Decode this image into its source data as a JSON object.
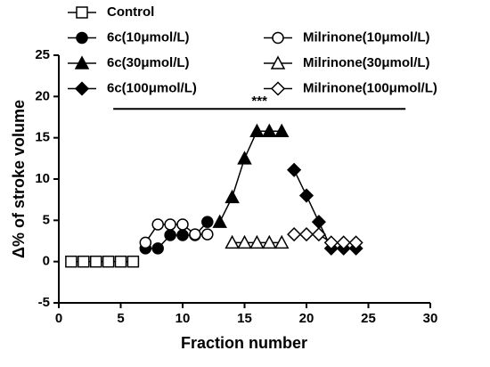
{
  "chart_data": {
    "type": "line",
    "xlabel": "Fraction number",
    "ylabel": "Δ% of stroke volume",
    "xlim": [
      0,
      30
    ],
    "xticks": [
      0,
      5,
      10,
      15,
      20,
      25,
      30
    ],
    "ylim": [
      -5,
      25
    ],
    "yticks": [
      -5,
      0,
      5,
      10,
      15,
      20,
      25
    ],
    "series": [
      {
        "name": "Control",
        "marker": "square",
        "filled": false,
        "x": [
          1,
          2,
          3,
          4,
          5,
          6
        ],
        "values": [
          0,
          0,
          0,
          0,
          0,
          0
        ]
      },
      {
        "name": "6c(10μmol/L)",
        "marker": "circle",
        "filled": true,
        "x": [
          7,
          8,
          9,
          10,
          11,
          12
        ],
        "values": [
          1.6,
          1.6,
          3.2,
          3.2,
          3.2,
          4.8
        ]
      },
      {
        "name": "6c(30μmol/L)",
        "marker": "triangle",
        "filled": true,
        "x": [
          13,
          14,
          15,
          16,
          17,
          18
        ],
        "values": [
          4.8,
          7.8,
          12.5,
          15.8,
          15.8,
          15.8
        ]
      },
      {
        "name": "6c(100μmol/L)",
        "marker": "diamond",
        "filled": true,
        "x": [
          19,
          20,
          21,
          22,
          23,
          24
        ],
        "values": [
          11.1,
          8,
          4.8,
          1.6,
          1.6,
          1.6
        ]
      },
      {
        "name": "Milrinone(10μmol/L)",
        "marker": "circle",
        "filled": false,
        "x": [
          7,
          8,
          9,
          10,
          11,
          12
        ],
        "values": [
          2.3,
          4.5,
          4.5,
          4.5,
          3.3,
          3.3
        ]
      },
      {
        "name": "Milrinone(30μmol/L)",
        "marker": "triangle",
        "filled": false,
        "x": [
          14,
          15,
          16,
          17,
          18
        ],
        "values": [
          2.3,
          2.3,
          2.3,
          2.3,
          2.3
        ]
      },
      {
        "name": "Milrinone(100μmol/L)",
        "marker": "diamond",
        "filled": false,
        "x": [
          19,
          20,
          21,
          22,
          23,
          24
        ],
        "values": [
          3.3,
          3.3,
          3.3,
          2.3,
          2.3,
          2.3
        ]
      }
    ],
    "bracket": {
      "x": [
        4.4,
        28
      ],
      "y": 18.5,
      "label": "***"
    }
  }
}
